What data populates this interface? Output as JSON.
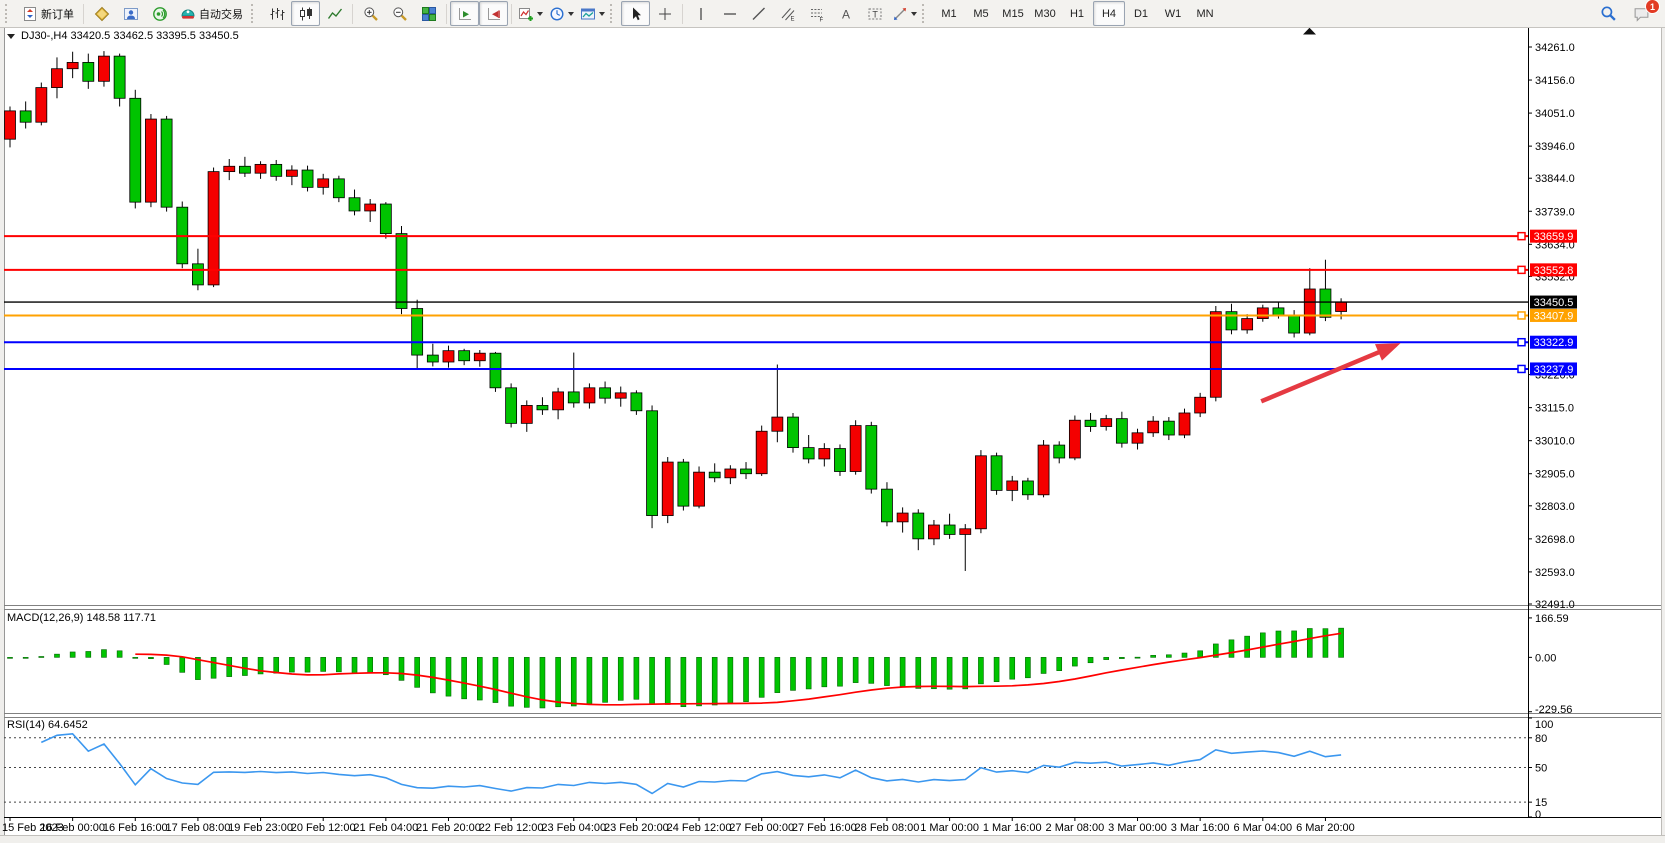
{
  "toolbar": {
    "new_order_label": "新订单",
    "autotrade_label": "自动交易",
    "timeframes": [
      "M1",
      "M5",
      "M15",
      "M30",
      "H1",
      "H4",
      "D1",
      "W1",
      "MN"
    ],
    "active_timeframe": "H4",
    "notification_badge": "1",
    "icon_names": [
      "new-order-icon",
      "market-watch-icon",
      "data-window-icon",
      "alerts-icon",
      "autotrading-icon",
      "bar-chart-icon",
      "candlestick-chart-icon",
      "line-chart-icon",
      "zoom-in-icon",
      "zoom-out-icon",
      "tile-windows-icon",
      "auto-scroll-icon",
      "chart-shift-icon",
      "indicators-icon",
      "periods-icon",
      "templates-icon",
      "cursor-icon",
      "crosshair-icon",
      "vertical-line-icon",
      "horizontal-line-icon",
      "trendline-icon",
      "equidistant-channel-icon",
      "fibonacci-icon",
      "text-icon",
      "text-label-icon",
      "arrows-icon",
      "search-icon",
      "chat-icon"
    ]
  },
  "chart": {
    "title": "DJ30-,H4  33420.5 33462.5 33395.5 33450.5"
  },
  "indicators": {
    "macd_label": "MACD(12,26,9) 148.58 117.71",
    "macd_params": {
      "fast": 12,
      "slow": 26,
      "signal": 9
    },
    "macd_axis": [
      {
        "value": 166.59,
        "text": "166.59"
      },
      {
        "value": 0,
        "text": "0.00"
      },
      {
        "value": -229.56,
        "text": "-229.56"
      }
    ],
    "rsi_label": "RSI(14) 64.6452",
    "rsi_period": 14,
    "rsi_axis": [
      {
        "value": 100,
        "text": "100"
      },
      {
        "value": 80,
        "text": "80"
      },
      {
        "value": 50,
        "text": "50"
      },
      {
        "value": 15,
        "text": "15"
      },
      {
        "value": 0,
        "text": "0"
      }
    ],
    "rsi_levels": [
      80,
      50,
      15
    ]
  },
  "chart_data": {
    "type": "candlestick",
    "symbol": "DJ30-",
    "timeframe": "H4",
    "ohlc": {
      "open": 33420.5,
      "high": 33462.5,
      "low": 33395.5,
      "close": 33450.5
    },
    "y_range": [
      32491.0,
      34261.0
    ],
    "y_axis_ticks": [
      34261.0,
      34156.0,
      34051.0,
      33946.0,
      33844.0,
      33739.0,
      33634.0,
      33532.0,
      33220.0,
      33115.0,
      33010.0,
      32905.0,
      32803.0,
      32698.0,
      32593.0,
      32491.0
    ],
    "hlines": [
      {
        "price": 33659.9,
        "color": "#ff0000",
        "label": "33659.9",
        "style": "line"
      },
      {
        "price": 33552.8,
        "color": "#ff0000",
        "label": "33552.8",
        "style": "line"
      },
      {
        "price": 33450.5,
        "color": "#000000",
        "label": "33450.5",
        "style": "bid"
      },
      {
        "price": 33407.9,
        "color": "#ffa200",
        "label": "33407.9",
        "style": "line"
      },
      {
        "price": 33322.9,
        "color": "#0000ff",
        "label": "33322.9",
        "style": "line"
      },
      {
        "price": 33237.9,
        "color": "#0000ff",
        "label": "33237.9",
        "style": "line"
      }
    ],
    "candles": [
      [
        33968,
        34072,
        33942,
        34058
      ],
      [
        34058,
        34088,
        34002,
        34022
      ],
      [
        34022,
        34148,
        34012,
        34132
      ],
      [
        34132,
        34228,
        34098,
        34192
      ],
      [
        34192,
        34246,
        34162,
        34212
      ],
      [
        34212,
        34240,
        34128,
        34152
      ],
      [
        34152,
        34248,
        34135,
        34232
      ],
      [
        34232,
        34240,
        34072,
        34098
      ],
      [
        34098,
        34125,
        33748,
        33768
      ],
      [
        33768,
        34048,
        33752,
        34032
      ],
      [
        34032,
        34042,
        33738,
        33752
      ],
      [
        33752,
        33770,
        33558,
        33572
      ],
      [
        33572,
        33620,
        33488,
        33505
      ],
      [
        33505,
        33878,
        33498,
        33865
      ],
      [
        33865,
        33905,
        33838,
        33882
      ],
      [
        33882,
        33912,
        33848,
        33860
      ],
      [
        33860,
        33898,
        33842,
        33888
      ],
      [
        33888,
        33902,
        33836,
        33850
      ],
      [
        33850,
        33885,
        33822,
        33870
      ],
      [
        33870,
        33884,
        33802,
        33815
      ],
      [
        33815,
        33858,
        33792,
        33842
      ],
      [
        33842,
        33852,
        33768,
        33782
      ],
      [
        33782,
        33808,
        33726,
        33740
      ],
      [
        33740,
        33778,
        33705,
        33762
      ],
      [
        33762,
        33768,
        33652,
        33668
      ],
      [
        33668,
        33692,
        33412,
        33430
      ],
      [
        33430,
        33458,
        33238,
        33282
      ],
      [
        33282,
        33318,
        33246,
        33260
      ],
      [
        33260,
        33312,
        33242,
        33296
      ],
      [
        33296,
        33302,
        33250,
        33264
      ],
      [
        33264,
        33298,
        33245,
        33288
      ],
      [
        33288,
        33292,
        33165,
        33178
      ],
      [
        33178,
        33192,
        33052,
        33065
      ],
      [
        33065,
        33138,
        33038,
        33122
      ],
      [
        33122,
        33148,
        33092,
        33108
      ],
      [
        33108,
        33178,
        33078,
        33165
      ],
      [
        33165,
        33290,
        33115,
        33130
      ],
      [
        33130,
        33192,
        33112,
        33178
      ],
      [
        33178,
        33198,
        33128,
        33145
      ],
      [
        33145,
        33182,
        33118,
        33162
      ],
      [
        33162,
        33170,
        33092,
        33105
      ],
      [
        33105,
        33122,
        32732,
        32772
      ],
      [
        32772,
        32958,
        32748,
        32942
      ],
      [
        32942,
        32952,
        32788,
        32802
      ],
      [
        32802,
        32928,
        32795,
        32910
      ],
      [
        32910,
        32938,
        32878,
        32892
      ],
      [
        32892,
        32932,
        32872,
        32920
      ],
      [
        32920,
        32942,
        32888,
        32905
      ],
      [
        32905,
        33058,
        32898,
        33040
      ],
      [
        33040,
        33252,
        33005,
        33085
      ],
      [
        33085,
        33098,
        32972,
        32988
      ],
      [
        32988,
        33028,
        32938,
        32952
      ],
      [
        32952,
        33002,
        32928,
        32985
      ],
      [
        32985,
        32998,
        32898,
        32912
      ],
      [
        32912,
        33075,
        32902,
        33058
      ],
      [
        33058,
        33070,
        32842,
        32856
      ],
      [
        32856,
        32878,
        32738,
        32752
      ],
      [
        32752,
        32798,
        32718,
        32780
      ],
      [
        32780,
        32792,
        32662,
        32698
      ],
      [
        32698,
        32758,
        32678,
        32742
      ],
      [
        32742,
        32778,
        32698,
        32712
      ],
      [
        32712,
        32745,
        32596,
        32730
      ],
      [
        32730,
        32980,
        32716,
        32962
      ],
      [
        32962,
        32972,
        32838,
        32852
      ],
      [
        32852,
        32898,
        32818,
        32882
      ],
      [
        32882,
        32892,
        32822,
        32838
      ],
      [
        32838,
        33012,
        32830,
        32996
      ],
      [
        32996,
        33008,
        32938,
        32955
      ],
      [
        32955,
        33090,
        32948,
        33075
      ],
      [
        33075,
        33098,
        33038,
        33055
      ],
      [
        33055,
        33092,
        33042,
        33080
      ],
      [
        33080,
        33102,
        32988,
        33002
      ],
      [
        33002,
        33048,
        32982,
        33035
      ],
      [
        33035,
        33088,
        33022,
        33072
      ],
      [
        33072,
        33085,
        33012,
        33028
      ],
      [
        33028,
        33112,
        33018,
        33098
      ],
      [
        33098,
        33162,
        33085,
        33148
      ],
      [
        33148,
        33438,
        33135,
        33420
      ],
      [
        33420,
        33445,
        33348,
        33362
      ],
      [
        33362,
        33412,
        33350,
        33398
      ],
      [
        33398,
        33442,
        33388,
        33432
      ],
      [
        33432,
        33450,
        33398,
        33408
      ],
      [
        33408,
        33425,
        33338,
        33352
      ],
      [
        33352,
        33558,
        33345,
        33492
      ],
      [
        33492,
        33585,
        33390,
        33402
      ],
      [
        33420.5,
        33462.5,
        33395.5,
        33450.5
      ]
    ],
    "time_labels": [
      "15 Feb 2023",
      "16 Feb 00:00",
      "16 Feb 16:00",
      "17 Feb 08:00",
      "19 Feb 23:00",
      "20 Feb 12:00",
      "21 Feb 04:00",
      "21 Feb 20:00",
      "22 Feb 12:00",
      "23 Feb 04:00",
      "23 Feb 20:00",
      "24 Feb 12:00",
      "27 Feb 00:00",
      "27 Feb 16:00",
      "28 Feb 08:00",
      "1 Mar 00:00",
      "1 Mar 16:00",
      "2 Mar 08:00",
      "3 Mar 00:00",
      "3 Mar 16:00",
      "6 Mar 04:00",
      "6 Mar 20:00"
    ],
    "annotations": {
      "arrow": {
        "from_bar": 79.9,
        "from_price": 33135,
        "to_bar": 88.8,
        "to_price": 33320,
        "color": "#e53a42"
      }
    },
    "colors": {
      "up": "#f40000",
      "down": "#00c400",
      "wick": "#000000",
      "macd_histogram": "#00c400",
      "macd_signal": "#ff0000",
      "rsi_line": "#3b97ef"
    }
  }
}
